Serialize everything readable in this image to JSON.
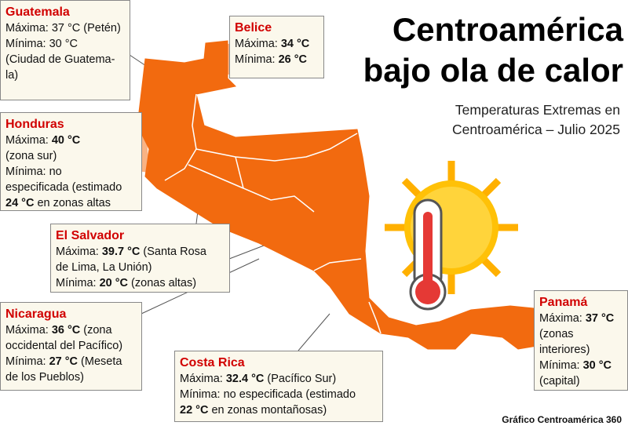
{
  "title_lines": [
    "Centroamérica",
    "bajo ola de calor"
  ],
  "subtitle_lines": [
    "Temperaturas Extremas en",
    "Centroamérica – Julio 2025"
  ],
  "credit": "Gráfico Centroamérica 360",
  "countries": [
    {
      "name": "Guatemala",
      "lines": [
        [
          {
            "text": "Máxima: 37 °C (Petén)"
          }
        ],
        [
          {
            "text": "Mínima: 30 °C"
          }
        ],
        [
          {
            "text": "(Ciudad de Guatema-"
          }
        ],
        [
          {
            "text": "la)"
          }
        ]
      ]
    },
    {
      "name": "Belice",
      "lines": [
        [
          {
            "text": "Máxima: "
          },
          {
            "text": "34 °C",
            "bold": true
          }
        ],
        [
          {
            "text": "Mínima: "
          },
          {
            "text": "26 °C",
            "bold": true
          }
        ]
      ]
    },
    {
      "name": "Honduras",
      "lines": [
        [
          {
            "text": "Máxima: "
          },
          {
            "text": "40 °C",
            "bold": true
          }
        ],
        [
          {
            "text": "(zona sur)"
          }
        ],
        [
          {
            "text": "Mínima: no"
          }
        ],
        [
          {
            "text": "especificada (estimado"
          }
        ],
        [
          {
            "text": "24 °C",
            "bold": true
          },
          {
            "text": " en zonas altas"
          }
        ]
      ]
    },
    {
      "name": "El Salvador",
      "lines": [
        [
          {
            "text": "Máxima: "
          },
          {
            "text": "39.7 °C",
            "bold": true
          },
          {
            "text": " (Santa Rosa"
          }
        ],
        [
          {
            "text": "de Lima, La Unión)"
          }
        ],
        [
          {
            "text": "Mínima: "
          },
          {
            "text": "20 °C",
            "bold": true
          },
          {
            "text": " (zonas altas)"
          }
        ]
      ]
    },
    {
      "name": "Nicaragua",
      "lines": [
        [
          {
            "text": "Máxima: "
          },
          {
            "text": "36 °C",
            "bold": true
          },
          {
            "text": " (zona"
          }
        ],
        [
          {
            "text": "occidental del Pacífico)"
          }
        ],
        [
          {
            "text": "Mínima: "
          },
          {
            "text": "27 °C",
            "bold": true
          },
          {
            "text": " (Meseta"
          }
        ],
        [
          {
            "text": "de los Pueblos)"
          }
        ]
      ]
    },
    {
      "name": "Costa Rica",
      "lines": [
        [
          {
            "text": "Máxima: "
          },
          {
            "text": "32.4 °C",
            "bold": true
          },
          {
            "text": " (Pacífico Sur)"
          }
        ],
        [
          {
            "text": "Mínima: no especificada (estimado"
          }
        ],
        [
          {
            "text": "22 °C",
            "bold": true
          },
          {
            "text": " en zonas montañosas)"
          }
        ]
      ]
    },
    {
      "name": "Panamá",
      "lines": [
        [
          {
            "text": "Máxima: "
          },
          {
            "text": "37 °C",
            "bold": true
          }
        ],
        [
          {
            "text": "(zonas"
          }
        ],
        [
          {
            "text": "interiores)"
          }
        ],
        [
          {
            "text": "Mínima: "
          },
          {
            "text": "30 °C",
            "bold": true
          }
        ],
        [
          {
            "text": "(capital)"
          }
        ]
      ]
    }
  ]
}
